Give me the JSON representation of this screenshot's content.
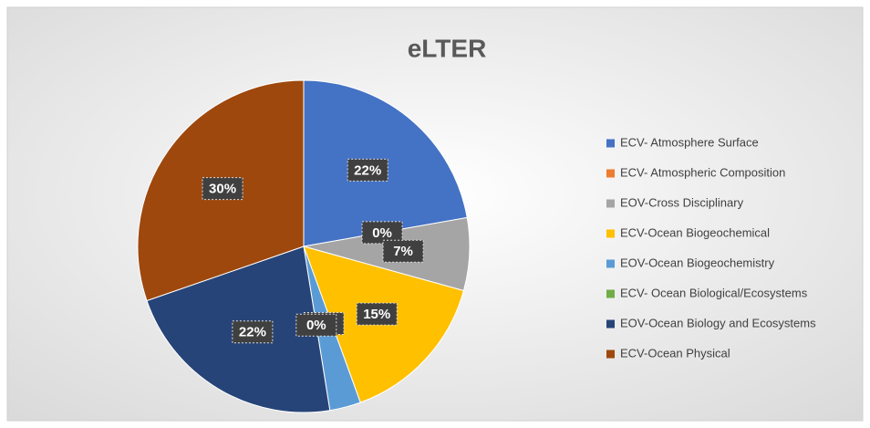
{
  "chart_data": {
    "type": "pie",
    "title": "eLTER",
    "categories": [
      "ECV- Atmosphere Surface",
      "ECV- Atmospheric Composition",
      "EOV-Cross Disciplinary",
      "ECV-Ocean Biogeochemical",
      "EOV-Ocean Biogeochemistry",
      "ECV- Ocean Biological/Ecosystems",
      "EOV-Ocean  Biology and Ecosystems",
      "ECV-Ocean Physical"
    ],
    "values": [
      22,
      0,
      7,
      15,
      3,
      0,
      22,
      30
    ],
    "value_labels": [
      "22%",
      "0%",
      "7%",
      "15%",
      "3%",
      "0%",
      "22%",
      "30%"
    ],
    "colors": [
      "#4472c4",
      "#ed7d31",
      "#a5a5a5",
      "#ffc000",
      "#5b9bd5",
      "#70ad47",
      "#264478",
      "#9e480e"
    ],
    "legend": "right"
  }
}
